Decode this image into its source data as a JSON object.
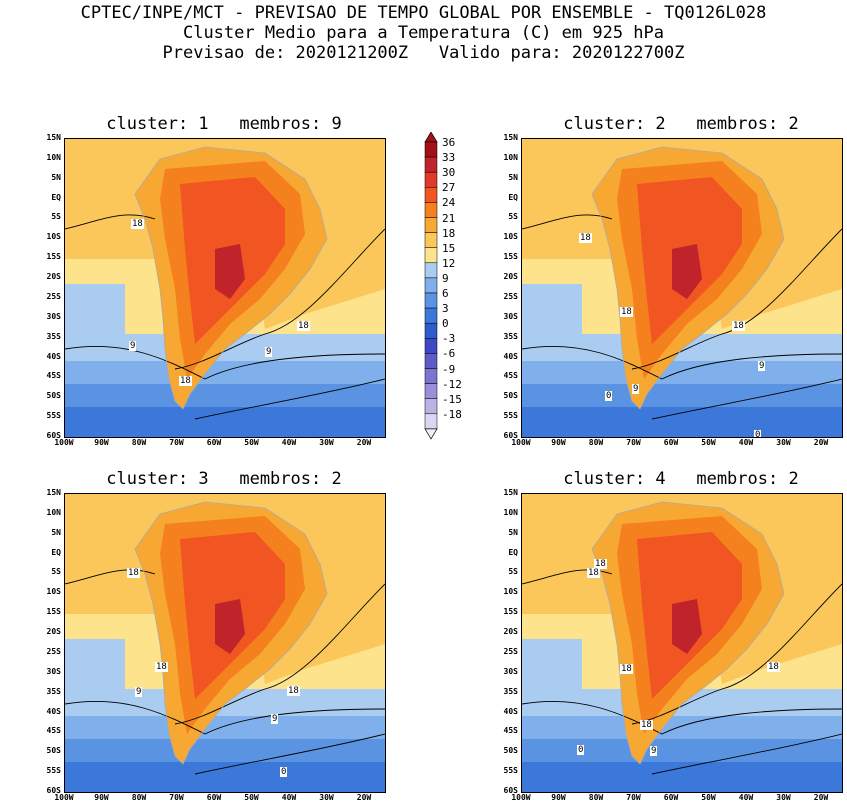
{
  "header": {
    "line1": "CPTEC/INPE/MCT - PREVISAO DE TEMPO GLOBAL POR ENSEMBLE - TQ0126L028",
    "line2": "Cluster Medio para a Temperatura (C) em 925 hPa",
    "line3": "Previsao de: 2020121200Z   Valido para: 2020122700Z"
  },
  "lat_labels": [
    "15N",
    "10N",
    "5N",
    "EQ",
    "5S",
    "10S",
    "15S",
    "20S",
    "25S",
    "30S",
    "35S",
    "40S",
    "45S",
    "50S",
    "55S",
    "60S"
  ],
  "lon_labels": [
    "100W",
    "90W",
    "80W",
    "70W",
    "60W",
    "50W",
    "40W",
    "30W",
    "20W"
  ],
  "panels": [
    {
      "title": "cluster: 1   membros: 9",
      "labels": [
        "18",
        "18",
        "9",
        "9",
        "18"
      ]
    },
    {
      "title": "cluster: 2   membros: 2",
      "labels": [
        "18",
        "18",
        "18",
        "9",
        "9",
        "0",
        "0"
      ]
    },
    {
      "title": "cluster: 3   membros: 2",
      "labels": [
        "18",
        "18",
        "18",
        "9",
        "9",
        "0"
      ]
    },
    {
      "title": "cluster: 4   membros: 2",
      "labels": [
        "18",
        "18",
        "18",
        "18",
        "18",
        "9",
        "0"
      ]
    }
  ],
  "colorbar": {
    "labels": [
      "36",
      "33",
      "30",
      "27",
      "24",
      "21",
      "18",
      "15",
      "12",
      "9",
      "6",
      "3",
      "0",
      "-3",
      "-6",
      "-9",
      "-12",
      "-15",
      "-18"
    ],
    "colors": [
      "#a01015",
      "#c0242a",
      "#e03a28",
      "#f05522",
      "#f5801e",
      "#f7a832",
      "#fbc75a",
      "#fde38c",
      "#a9ccf0",
      "#80b0ec",
      "#5b93e3",
      "#3c78da",
      "#2d5ccc",
      "#3f48c4",
      "#5d5bc8",
      "#7b74d0",
      "#9a90da",
      "#bcb2e6",
      "#dcd6f3"
    ]
  }
}
